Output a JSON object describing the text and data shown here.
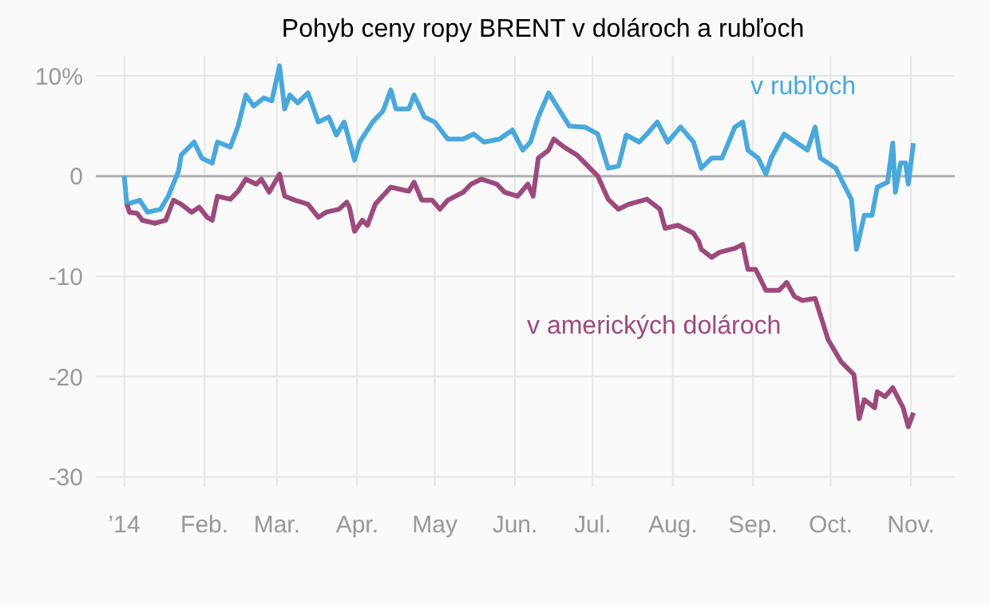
{
  "chart_data": {
    "type": "line",
    "title": "Pohyb ceny ropy BRENT v dolároch a rubľoch",
    "xlim": [
      "2013-12-21",
      "2014-11-18"
    ],
    "xticks": [
      {
        "value": "2014-01-01",
        "label": "’14"
      },
      {
        "value": "2014-02-01",
        "label": "Feb."
      },
      {
        "value": "2014-03-01",
        "label": "Mar."
      },
      {
        "value": "2014-04-01",
        "label": "Apr."
      },
      {
        "value": "2014-05-01",
        "label": "May"
      },
      {
        "value": "2014-06-01",
        "label": "Jun."
      },
      {
        "value": "2014-07-01",
        "label": "Jul."
      },
      {
        "value": "2014-08-01",
        "label": "Aug."
      },
      {
        "value": "2014-09-01",
        "label": "Sep."
      },
      {
        "value": "2014-10-01",
        "label": "Oct."
      },
      {
        "value": "2014-11-01",
        "label": "Nov."
      }
    ],
    "ylim": [
      -31,
      12
    ],
    "yticks": [
      {
        "value": 10,
        "label": "10%"
      },
      0,
      -10,
      -20,
      -30
    ],
    "grid": true,
    "marker": "none",
    "line_style": "solid",
    "ref_lines": [
      {
        "axis": "y",
        "value": 0,
        "color": "#b0b0b0"
      }
    ],
    "series": [
      {
        "name": "v rubľoch",
        "color": "#4aa8dc",
        "x": [
          "2014-01-01",
          "2014-01-02",
          "2014-01-07",
          "2014-01-10",
          "2014-01-15",
          "2014-01-18",
          "2014-01-22",
          "2014-01-23",
          "2014-01-28",
          "2014-01-31",
          "2014-02-04",
          "2014-02-06",
          "2014-02-11",
          "2014-02-14",
          "2014-02-17",
          "2014-02-20",
          "2014-02-24",
          "2014-02-27",
          "2014-03-02",
          "2014-03-04",
          "2014-03-06",
          "2014-03-09",
          "2014-03-13",
          "2014-03-17",
          "2014-03-21",
          "2014-03-24",
          "2014-03-27",
          "2014-03-31",
          "2014-04-02",
          "2014-04-07",
          "2014-04-11",
          "2014-04-14",
          "2014-04-16",
          "2014-04-21",
          "2014-04-23",
          "2014-04-27",
          "2014-05-01",
          "2014-05-06",
          "2014-05-12",
          "2014-05-16",
          "2014-05-20",
          "2014-05-26",
          "2014-05-31",
          "2014-06-04",
          "2014-06-07",
          "2014-06-10",
          "2014-06-14",
          "2014-06-22",
          "2014-06-28",
          "2014-07-03",
          "2014-07-07",
          "2014-07-11",
          "2014-07-14",
          "2014-07-19",
          "2014-07-22",
          "2014-07-26",
          "2014-07-30",
          "2014-08-04",
          "2014-08-09",
          "2014-08-12",
          "2014-08-16",
          "2014-08-20",
          "2014-08-25",
          "2014-08-28",
          "2014-08-30",
          "2014-09-03",
          "2014-09-06",
          "2014-09-08",
          "2014-09-13",
          "2014-09-18",
          "2014-09-22",
          "2014-09-25",
          "2014-09-27",
          "2014-10-03",
          "2014-10-06",
          "2014-10-09",
          "2014-10-11",
          "2014-10-14",
          "2014-10-17",
          "2014-10-19",
          "2014-10-23",
          "2014-10-25",
          "2014-10-26",
          "2014-10-28",
          "2014-10-30",
          "2014-10-31",
          "2014-11-02"
        ],
        "values": [
          0,
          -2.8,
          -2.4,
          -3.6,
          -3.3,
          -2,
          0.5,
          2.1,
          3.4,
          1.8,
          1.3,
          3.4,
          2.9,
          5,
          8.1,
          7,
          7.8,
          7.5,
          11,
          6.7,
          8.1,
          7.3,
          8.3,
          5.4,
          5.9,
          4.1,
          5.4,
          1.6,
          3.4,
          5.4,
          6.5,
          8.6,
          6.7,
          6.7,
          8.1,
          5.9,
          5.4,
          3.7,
          3.7,
          4.2,
          3.4,
          3.7,
          4.6,
          2.6,
          3.4,
          5.9,
          8.3,
          5,
          4.9,
          4.2,
          0.8,
          1,
          4.1,
          3.4,
          4.2,
          5.4,
          3.4,
          4.9,
          3.4,
          0.8,
          1.8,
          1.8,
          4.9,
          5.4,
          2.6,
          1.8,
          0.2,
          1.8,
          4.2,
          3.3,
          2.6,
          4.9,
          1.8,
          0.8,
          -0.8,
          -2.3,
          -7.3,
          -3.9,
          -3.9,
          -1.1,
          -0.6,
          3.3,
          -1.6,
          1.3,
          1.3,
          -0.8,
          3.3
        ]
      },
      {
        "name": "v amerických dolároch",
        "color": "#9c4a7c",
        "x": [
          "2014-01-02",
          "2014-01-03",
          "2014-01-06",
          "2014-01-08",
          "2014-01-13",
          "2014-01-17",
          "2014-01-20",
          "2014-01-23",
          "2014-01-27",
          "2014-01-30",
          "2014-02-02",
          "2014-02-04",
          "2014-02-06",
          "2014-02-11",
          "2014-02-14",
          "2014-02-17",
          "2014-02-21",
          "2014-02-23",
          "2014-02-26",
          "2014-03-02",
          "2014-03-04",
          "2014-03-08",
          "2014-03-13",
          "2014-03-17",
          "2014-03-20",
          "2014-03-25",
          "2014-03-28",
          "2014-03-29",
          "2014-03-31",
          "2014-04-03",
          "2014-04-05",
          "2014-04-08",
          "2014-04-14",
          "2014-04-21",
          "2014-04-23",
          "2014-04-26",
          "2014-04-30",
          "2014-05-03",
          "2014-05-06",
          "2014-05-12",
          "2014-05-15",
          "2014-05-19",
          "2014-05-25",
          "2014-05-28",
          "2014-06-02",
          "2014-06-06",
          "2014-06-08",
          "2014-06-10",
          "2014-06-14",
          "2014-06-16",
          "2014-06-20",
          "2014-06-25",
          "2014-07-03",
          "2014-07-07",
          "2014-07-11",
          "2014-07-15",
          "2014-07-22",
          "2014-07-27",
          "2014-07-29",
          "2014-08-03",
          "2014-08-09",
          "2014-08-11",
          "2014-08-12",
          "2014-08-16",
          "2014-08-19",
          "2014-08-25",
          "2014-08-28",
          "2014-08-30",
          "2014-09-02",
          "2014-09-06",
          "2014-09-11",
          "2014-09-14",
          "2014-09-17",
          "2014-09-20",
          "2014-09-25",
          "2014-09-30",
          "2014-10-05",
          "2014-10-10",
          "2014-10-12",
          "2014-10-14",
          "2014-10-18",
          "2014-10-19",
          "2014-10-22",
          "2014-10-25",
          "2014-10-29",
          "2014-10-31",
          "2014-11-02"
        ],
        "values": [
          -2.8,
          -3.6,
          -3.7,
          -4.4,
          -4.7,
          -4.4,
          -2.4,
          -2.8,
          -3.6,
          -3.1,
          -4.1,
          -4.4,
          -2,
          -2.3,
          -1.5,
          -0.3,
          -0.8,
          -0.3,
          -1.6,
          0.2,
          -2,
          -2.4,
          -2.8,
          -4.1,
          -3.6,
          -3.3,
          -2.6,
          -3.1,
          -5.5,
          -4.4,
          -4.9,
          -2.8,
          -1.1,
          -1.5,
          -0.6,
          -2.4,
          -2.4,
          -3.3,
          -2.4,
          -1.6,
          -0.8,
          -0.3,
          -0.8,
          -1.6,
          -2,
          -0.8,
          -2,
          1.8,
          2.6,
          3.7,
          2.9,
          2.1,
          0,
          -2.3,
          -3.3,
          -2.8,
          -2.3,
          -3.3,
          -5.2,
          -4.9,
          -5.7,
          -6.5,
          -7.3,
          -8.1,
          -7.6,
          -7.2,
          -6.8,
          -9.3,
          -9.3,
          -11.4,
          -11.4,
          -10.6,
          -12,
          -12.4,
          -12.2,
          -16.3,
          -18.5,
          -19.8,
          -24.2,
          -22.3,
          -23.1,
          -21.5,
          -22,
          -21.1,
          -23.1,
          -25,
          -23.6
        ]
      }
    ]
  }
}
